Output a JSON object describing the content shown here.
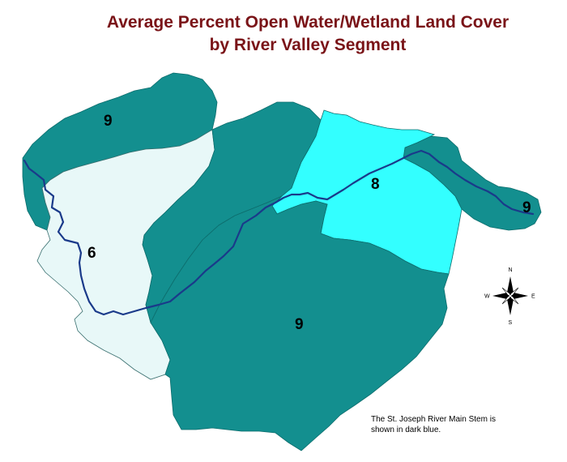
{
  "title": {
    "line1": "Average Percent Open Water/Wetland Land Cover",
    "line2": "by River Valley Segment"
  },
  "colors": {
    "dark_teal": "#138f8f",
    "light_blue": "#e8f8f8",
    "cyan": "#33ffff",
    "river": "#1a3a8a",
    "title": "#7a1418"
  },
  "segments": [
    {
      "id": "northwest",
      "value": "9",
      "color": "dark_teal"
    },
    {
      "id": "west",
      "value": "6",
      "color": "light_blue"
    },
    {
      "id": "east-central",
      "value": "8",
      "color": "cyan"
    },
    {
      "id": "far-east",
      "value": "9",
      "color": "dark_teal"
    },
    {
      "id": "south-central",
      "value": "9",
      "color": "dark_teal"
    }
  ],
  "compass": {
    "n": "N",
    "s": "S",
    "e": "E",
    "w": "W"
  },
  "note": {
    "line1": "The St. Joseph River Main Stem is",
    "line2": "shown in dark blue."
  }
}
